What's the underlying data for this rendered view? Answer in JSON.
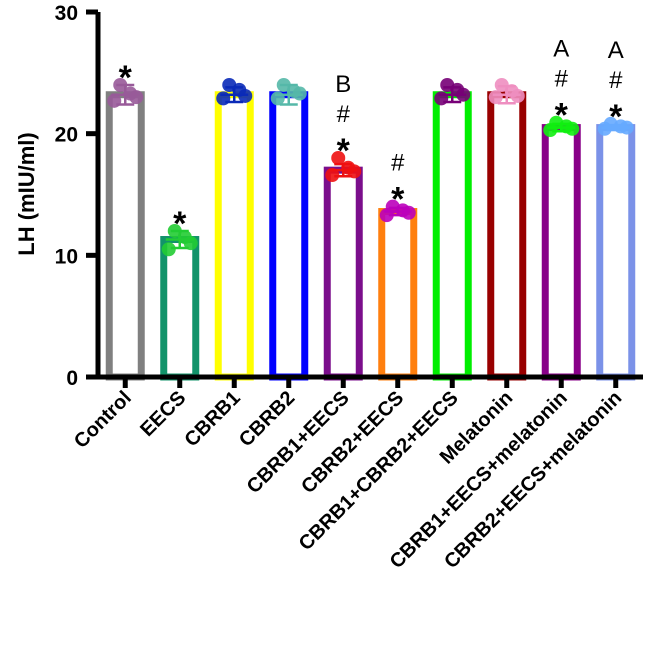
{
  "chart_data": {
    "type": "bar",
    "ylabel": "LH (mIU/ml)",
    "ylim": [
      0,
      30
    ],
    "yticks": [
      0,
      10,
      20,
      30
    ],
    "categories": [
      "Control",
      "EECS",
      "CBRB1",
      "CBRB2",
      "CBRB1+EECS",
      "CBRB2+EECS",
      "CBRB1+CBRB2+EECS",
      "Melatonin",
      "CBRB1+EECS+melatonin",
      "CBRB2+EECS+melatonin"
    ],
    "values": [
      23.2,
      11.3,
      23.2,
      23.2,
      17.0,
      13.6,
      23.2,
      23.2,
      20.5,
      20.5
    ],
    "errors": [
      0.8,
      0.7,
      0.6,
      0.8,
      0.5,
      0.3,
      0.6,
      0.7,
      0.3,
      0.2
    ],
    "points": [
      [
        24.0,
        22.7,
        23.3,
        23.0
      ],
      [
        12.0,
        10.5,
        11.5,
        11.0
      ],
      [
        24.0,
        22.9,
        23.6,
        23.1
      ],
      [
        24.0,
        22.9,
        23.5,
        23.3
      ],
      [
        18.0,
        16.6,
        17.2,
        16.9
      ],
      [
        14.0,
        13.3,
        13.7,
        13.5
      ],
      [
        24.0,
        22.9,
        23.6,
        23.2
      ],
      [
        24.0,
        23.0,
        23.5,
        23.1
      ],
      [
        20.9,
        20.3,
        20.6,
        20.4
      ],
      [
        20.8,
        20.4,
        20.6,
        20.5
      ]
    ],
    "bar_colors": [
      "#808080",
      "#12936a",
      "#ffff00",
      "#0000ff",
      "#7b0e8c",
      "#ff7f0e",
      "#00ee00",
      "#990000",
      "#880088",
      "#7b92e8"
    ],
    "point_colors": [
      "#985a99",
      "#22cc33",
      "#0a2ab8",
      "#55b8a8",
      "#ee1111",
      "#bb00bb",
      "#770077",
      "#ee8ec0",
      "#11ee11",
      "#66aaff"
    ],
    "annotations": [
      [
        "*"
      ],
      [
        "*"
      ],
      [],
      [],
      [
        "B",
        "#",
        "*"
      ],
      [
        "#",
        "*"
      ],
      [],
      [],
      [
        "A",
        "#",
        "*"
      ],
      [
        "A",
        "#",
        "*"
      ]
    ]
  }
}
